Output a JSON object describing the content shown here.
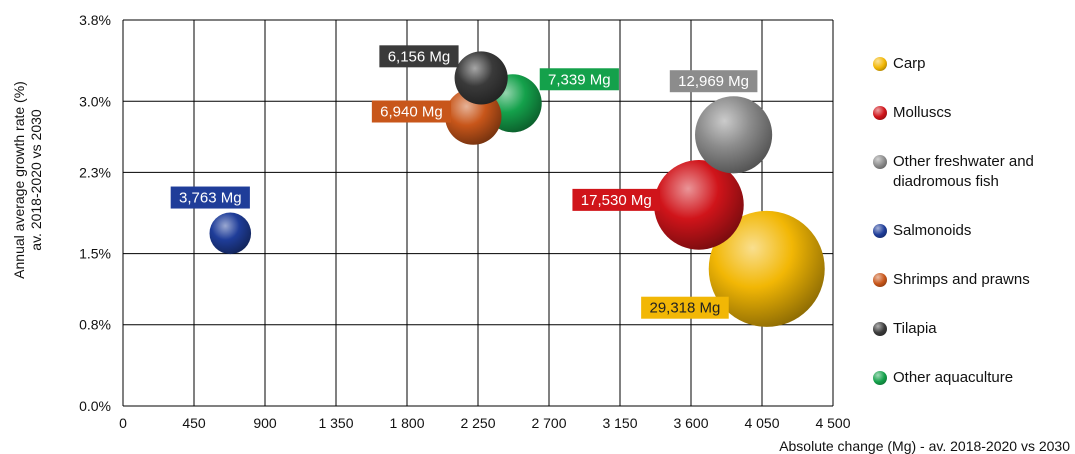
{
  "chart_data": {
    "type": "bubble",
    "xlabel": "Absolute change (Mg) - av. 2018-2020 vs 2030",
    "ylabel": [
      "Annual average growth rate (%)",
      "av. 2018-2020  vs 2030"
    ],
    "xlim": [
      0,
      4500
    ],
    "ylim": [
      0,
      3.8
    ],
    "x_ticks": [
      0,
      450,
      900,
      1350,
      1800,
      2250,
      2700,
      3150,
      3600,
      4050,
      4500
    ],
    "x_tick_labels": [
      "0",
      "450",
      "900",
      "1 350",
      "1 800",
      "2 250",
      "2 700",
      "3 150",
      "3 600",
      "4 050",
      "4 500"
    ],
    "y_ticks": [
      0,
      0.8,
      1.5,
      2.3,
      3.0,
      3.8
    ],
    "y_tick_labels": [
      "0.0%",
      "0.8%",
      "1.5%",
      "2.3%",
      "3.0%",
      "3.8%"
    ],
    "grid": true,
    "legend_position": "right",
    "series": [
      {
        "name": "Carp",
        "x": 4080,
        "y": 1.35,
        "size": 29318,
        "label": "29,318 Mg",
        "color": "#f2b705",
        "label_side": "left-below"
      },
      {
        "name": "Molluscs",
        "x": 3650,
        "y": 1.98,
        "size": 17530,
        "label": "17,530 Mg",
        "color": "#d0141a",
        "label_side": "left"
      },
      {
        "name": "Other freshwater and diadromous fish",
        "x": 3870,
        "y": 2.67,
        "size": 12969,
        "label": "12,969 Mg",
        "color": "#8c8c8c",
        "label_side": "above"
      },
      {
        "name": "Salmonoids",
        "x": 680,
        "y": 1.7,
        "size": 3763,
        "label": "3,763 Mg",
        "color": "#1f3d99",
        "label_side": "above"
      },
      {
        "name": "Shrimps and prawns",
        "x": 2220,
        "y": 2.85,
        "size": 6940,
        "label": "6,940 Mg",
        "color": "#c8561a",
        "label_side": "left"
      },
      {
        "name": "Tilapia",
        "x": 2270,
        "y": 3.23,
        "size": 6156,
        "label": "6,156 Mg",
        "color": "#3a3a3a",
        "label_side": "left-above"
      },
      {
        "name": "Other aquaculture",
        "x": 2470,
        "y": 2.98,
        "size": 7339,
        "label": "7,339 Mg",
        "color": "#14a14b",
        "label_side": "right-above"
      }
    ]
  }
}
